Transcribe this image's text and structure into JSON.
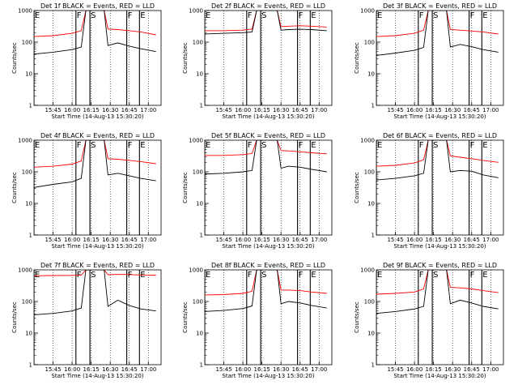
{
  "chart_data": {
    "type": "line",
    "y_scale": "log",
    "ylim": [
      1,
      1000
    ],
    "ylabel": "Counts/sec",
    "xlabel": "Start Time (14-Aug-13 15:30:20)",
    "x_ticks": [
      "15:45",
      "16:00",
      "16:15",
      "16:30",
      "16:45",
      "17:00"
    ],
    "y_ticks": [
      "1",
      "10",
      "100",
      "1000"
    ],
    "series_colors": {
      "events": "#000000",
      "lld": "#ff0000"
    },
    "markers": [
      {
        "label": "E",
        "style": "solid",
        "time": "15:30"
      },
      {
        "label": "F",
        "style": "solid",
        "time": "16:03"
      },
      {
        "label": "S",
        "style": "solid",
        "time": "16:14"
      },
      {
        "label": "F",
        "style": "solid",
        "time": "16:43"
      },
      {
        "label": "E",
        "style": "solid",
        "time": "16:53"
      }
    ],
    "panels": [
      {
        "title": "Det 1f BLACK = Events, RED = LLD",
        "events": [
          [
            15.5,
            42
          ],
          [
            15.75,
            48
          ],
          [
            16.0,
            58
          ],
          [
            16.12,
            70
          ],
          [
            16.18,
            1000
          ],
          [
            16.42,
            1000
          ],
          [
            16.47,
            78
          ],
          [
            16.6,
            95
          ],
          [
            16.75,
            75
          ],
          [
            16.9,
            62
          ],
          [
            17.1,
            50
          ]
        ],
        "lld": [
          [
            15.5,
            150
          ],
          [
            15.75,
            160
          ],
          [
            16.0,
            190
          ],
          [
            16.12,
            230
          ],
          [
            16.18,
            1000
          ],
          [
            16.42,
            1000
          ],
          [
            16.47,
            260
          ],
          [
            16.6,
            250
          ],
          [
            16.75,
            230
          ],
          [
            16.9,
            210
          ],
          [
            17.1,
            170
          ]
        ]
      },
      {
        "title": "Det 2f BLACK = Events, RED = LLD",
        "events": [
          [
            15.5,
            180
          ],
          [
            15.75,
            190
          ],
          [
            16.0,
            200
          ],
          [
            16.12,
            210
          ],
          [
            16.18,
            1000
          ],
          [
            16.45,
            1000
          ],
          [
            16.5,
            240
          ],
          [
            16.6,
            250
          ],
          [
            16.75,
            255
          ],
          [
            16.9,
            250
          ],
          [
            17.1,
            230
          ]
        ],
        "lld": [
          [
            15.5,
            230
          ],
          [
            15.75,
            230
          ],
          [
            16.0,
            240
          ],
          [
            16.12,
            260
          ],
          [
            16.18,
            1000
          ],
          [
            16.45,
            1000
          ],
          [
            16.5,
            310
          ],
          [
            16.6,
            320
          ],
          [
            16.75,
            330
          ],
          [
            16.9,
            320
          ],
          [
            17.1,
            300
          ]
        ]
      },
      {
        "title": "Det 3f BLACK = Events, RED = LLD",
        "events": [
          [
            15.5,
            38
          ],
          [
            15.75,
            45
          ],
          [
            16.0,
            55
          ],
          [
            16.12,
            68
          ],
          [
            16.18,
            1000
          ],
          [
            16.42,
            1000
          ],
          [
            16.47,
            70
          ],
          [
            16.6,
            85
          ],
          [
            16.75,
            72
          ],
          [
            16.9,
            58
          ],
          [
            17.1,
            48
          ]
        ],
        "lld": [
          [
            15.5,
            150
          ],
          [
            15.75,
            160
          ],
          [
            16.0,
            190
          ],
          [
            16.12,
            240
          ],
          [
            16.18,
            1000
          ],
          [
            16.42,
            1000
          ],
          [
            16.47,
            250
          ],
          [
            16.6,
            240
          ],
          [
            16.75,
            225
          ],
          [
            16.9,
            210
          ],
          [
            17.1,
            180
          ]
        ]
      },
      {
        "title": "Det 4f BLACK = Events, RED = LLD",
        "events": [
          [
            15.5,
            32
          ],
          [
            15.75,
            40
          ],
          [
            16.0,
            48
          ],
          [
            16.12,
            62
          ],
          [
            16.18,
            1000
          ],
          [
            16.42,
            1000
          ],
          [
            16.47,
            80
          ],
          [
            16.6,
            90
          ],
          [
            16.75,
            75
          ],
          [
            16.9,
            62
          ],
          [
            17.1,
            52
          ]
        ],
        "lld": [
          [
            15.5,
            140
          ],
          [
            15.75,
            150
          ],
          [
            16.0,
            175
          ],
          [
            16.12,
            220
          ],
          [
            16.18,
            1000
          ],
          [
            16.42,
            1000
          ],
          [
            16.47,
            260
          ],
          [
            16.6,
            250
          ],
          [
            16.75,
            230
          ],
          [
            16.9,
            210
          ],
          [
            17.1,
            180
          ]
        ]
      },
      {
        "title": "Det 5f BLACK = Events, RED = LLD",
        "events": [
          [
            15.5,
            85
          ],
          [
            15.75,
            90
          ],
          [
            16.0,
            100
          ],
          [
            16.12,
            110
          ],
          [
            16.18,
            1000
          ],
          [
            16.45,
            1000
          ],
          [
            16.5,
            130
          ],
          [
            16.6,
            150
          ],
          [
            16.75,
            140
          ],
          [
            16.9,
            120
          ],
          [
            17.1,
            100
          ]
        ],
        "lld": [
          [
            15.5,
            330
          ],
          [
            15.75,
            330
          ],
          [
            16.0,
            350
          ],
          [
            16.12,
            380
          ],
          [
            16.18,
            1000
          ],
          [
            16.45,
            1000
          ],
          [
            16.5,
            470
          ],
          [
            16.6,
            460
          ],
          [
            16.75,
            430
          ],
          [
            16.9,
            400
          ],
          [
            17.1,
            370
          ]
        ]
      },
      {
        "title": "Det 6f BLACK = Events, RED = LLD",
        "events": [
          [
            15.5,
            55
          ],
          [
            15.75,
            62
          ],
          [
            16.0,
            75
          ],
          [
            16.12,
            90
          ],
          [
            16.18,
            1000
          ],
          [
            16.42,
            1000
          ],
          [
            16.47,
            100
          ],
          [
            16.6,
            110
          ],
          [
            16.75,
            105
          ],
          [
            16.9,
            80
          ],
          [
            17.1,
            65
          ]
        ],
        "lld": [
          [
            15.5,
            150
          ],
          [
            15.75,
            160
          ],
          [
            16.0,
            190
          ],
          [
            16.12,
            240
          ],
          [
            16.18,
            1000
          ],
          [
            16.42,
            1000
          ],
          [
            16.47,
            320
          ],
          [
            16.6,
            290
          ],
          [
            16.75,
            260
          ],
          [
            16.9,
            230
          ],
          [
            17.1,
            200
          ]
        ]
      },
      {
        "title": "Det 7f BLACK = Events, RED = LLD",
        "events": [
          [
            15.5,
            38
          ],
          [
            15.75,
            42
          ],
          [
            16.0,
            50
          ],
          [
            16.12,
            62
          ],
          [
            16.18,
            1000
          ],
          [
            16.42,
            1000
          ],
          [
            16.47,
            70
          ],
          [
            16.6,
            110
          ],
          [
            16.75,
            75
          ],
          [
            16.9,
            58
          ],
          [
            17.1,
            50
          ]
        ],
        "lld": [
          [
            15.5,
            650
          ],
          [
            15.75,
            660
          ],
          [
            16.0,
            670
          ],
          [
            16.12,
            680
          ],
          [
            16.18,
            1000
          ],
          [
            16.42,
            1000
          ],
          [
            16.47,
            700
          ],
          [
            16.6,
            720
          ],
          [
            16.75,
            710
          ],
          [
            16.9,
            690
          ],
          [
            17.1,
            680
          ]
        ]
      },
      {
        "title": "Det 8f BLACK = Events, RED = LLD",
        "events": [
          [
            15.5,
            48
          ],
          [
            15.75,
            52
          ],
          [
            16.0,
            60
          ],
          [
            16.12,
            72
          ],
          [
            16.18,
            1000
          ],
          [
            16.45,
            1000
          ],
          [
            16.5,
            85
          ],
          [
            16.6,
            100
          ],
          [
            16.75,
            90
          ],
          [
            16.9,
            75
          ],
          [
            17.1,
            62
          ]
        ],
        "lld": [
          [
            15.5,
            160
          ],
          [
            15.75,
            165
          ],
          [
            16.0,
            180
          ],
          [
            16.12,
            210
          ],
          [
            16.18,
            1000
          ],
          [
            16.45,
            1000
          ],
          [
            16.5,
            230
          ],
          [
            16.6,
            230
          ],
          [
            16.75,
            220
          ],
          [
            16.9,
            200
          ],
          [
            17.1,
            180
          ]
        ]
      },
      {
        "title": "Det 9f BLACK = Events, RED = LLD",
        "events": [
          [
            15.5,
            42
          ],
          [
            15.75,
            48
          ],
          [
            16.0,
            58
          ],
          [
            16.12,
            70
          ],
          [
            16.18,
            1000
          ],
          [
            16.42,
            1000
          ],
          [
            16.47,
            85
          ],
          [
            16.6,
            110
          ],
          [
            16.75,
            90
          ],
          [
            16.9,
            70
          ],
          [
            17.1,
            58
          ]
        ],
        "lld": [
          [
            15.5,
            170
          ],
          [
            15.75,
            180
          ],
          [
            16.0,
            200
          ],
          [
            16.12,
            250
          ],
          [
            16.18,
            1000
          ],
          [
            16.42,
            1000
          ],
          [
            16.47,
            280
          ],
          [
            16.6,
            270
          ],
          [
            16.75,
            250
          ],
          [
            16.9,
            220
          ],
          [
            17.1,
            190
          ]
        ]
      }
    ]
  }
}
